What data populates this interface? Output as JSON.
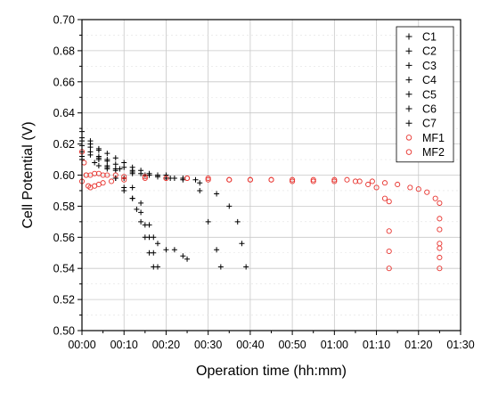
{
  "chart_data": {
    "type": "scatter",
    "title": "",
    "xlabel": "Operation time (hh:mm)",
    "ylabel": "Cell Potential (V)",
    "xlim": [
      0,
      90
    ],
    "ylim": [
      0.5,
      0.7
    ],
    "x_unit": "minutes",
    "x_ticks": [
      0,
      10,
      20,
      30,
      40,
      50,
      60,
      70,
      80,
      90
    ],
    "x_tick_labels": [
      "00:00",
      "00:10",
      "00:20",
      "00:30",
      "00:40",
      "00:50",
      "01:00",
      "01:10",
      "01:20",
      "01:30"
    ],
    "y_ticks": [
      0.5,
      0.52,
      0.54,
      0.56,
      0.58,
      0.6,
      0.62,
      0.64,
      0.66,
      0.68,
      0.7
    ],
    "y_tick_labels": [
      "0.50",
      "0.52",
      "0.54",
      "0.56",
      "0.58",
      "0.60",
      "0.62",
      "0.64",
      "0.66",
      "0.68",
      "0.70"
    ],
    "grid": true,
    "legend_position": "top-right",
    "series": [
      {
        "name": "C1",
        "marker": "plus",
        "color": "#000000",
        "x": [
          0,
          2,
          4,
          6,
          8,
          10,
          12,
          13,
          14,
          15,
          16,
          17
        ],
        "y": [
          0.624,
          0.618,
          0.612,
          0.605,
          0.598,
          0.59,
          0.585,
          0.578,
          0.57,
          0.56,
          0.55,
          0.541
        ]
      },
      {
        "name": "C2",
        "marker": "plus",
        "color": "#000000",
        "x": [
          0,
          2,
          4,
          6,
          8,
          10,
          12,
          14,
          15,
          16,
          17,
          18
        ],
        "y": [
          0.619,
          0.615,
          0.61,
          0.604,
          0.598,
          0.592,
          0.585,
          0.576,
          0.568,
          0.56,
          0.55,
          0.541
        ]
      },
      {
        "name": "C3",
        "marker": "plus",
        "color": "#000000",
        "x": [
          0,
          2,
          4,
          6,
          8,
          10,
          12,
          14,
          16,
          17,
          18,
          20,
          22,
          24,
          25
        ],
        "y": [
          0.628,
          0.622,
          0.616,
          0.61,
          0.604,
          0.598,
          0.592,
          0.582,
          0.568,
          0.56,
          0.556,
          0.552,
          0.552,
          0.548,
          0.546
        ]
      },
      {
        "name": "C4",
        "marker": "plus",
        "color": "#000000",
        "x": [
          0,
          2,
          4,
          6,
          8,
          10,
          12,
          14,
          16,
          18,
          20
        ],
        "y": [
          0.622,
          0.62,
          0.617,
          0.614,
          0.611,
          0.608,
          0.605,
          0.603,
          0.601,
          0.6,
          0.6
        ]
      },
      {
        "name": "C5",
        "marker": "plus",
        "color": "#000000",
        "x": [
          0,
          2,
          4,
          6,
          8,
          10,
          12,
          14,
          16,
          18,
          20,
          22
        ],
        "y": [
          0.615,
          0.613,
          0.611,
          0.609,
          0.607,
          0.605,
          0.603,
          0.601,
          0.6,
          0.599,
          0.598,
          0.598
        ]
      },
      {
        "name": "C6",
        "marker": "plus",
        "color": "#000000",
        "x": [
          0,
          3,
          6,
          9,
          12,
          15,
          18,
          21,
          24,
          27,
          28,
          30,
          32,
          33
        ],
        "y": [
          0.612,
          0.608,
          0.606,
          0.604,
          0.602,
          0.6,
          0.599,
          0.598,
          0.598,
          0.597,
          0.59,
          0.57,
          0.552,
          0.541
        ]
      },
      {
        "name": "C7",
        "marker": "plus",
        "color": "#000000",
        "x": [
          0,
          4,
          8,
          12,
          16,
          20,
          24,
          28,
          32,
          35,
          37,
          38,
          39
        ],
        "y": [
          0.61,
          0.606,
          0.603,
          0.601,
          0.6,
          0.598,
          0.597,
          0.595,
          0.588,
          0.58,
          0.57,
          0.556,
          0.541
        ]
      },
      {
        "name": "MF1",
        "marker": "circle",
        "color": "#e8342f",
        "x": [
          0,
          1,
          2,
          3,
          4,
          5,
          6,
          8,
          10,
          15,
          20,
          25,
          30,
          35,
          40,
          45,
          50,
          55,
          60,
          65,
          68,
          70,
          72,
          73,
          73,
          73,
          73
        ],
        "y": [
          0.596,
          0.6,
          0.6,
          0.601,
          0.601,
          0.6,
          0.6,
          0.6,
          0.599,
          0.599,
          0.598,
          0.598,
          0.597,
          0.597,
          0.597,
          0.597,
          0.596,
          0.596,
          0.596,
          0.596,
          0.594,
          0.592,
          0.585,
          0.583,
          0.564,
          0.551,
          0.54
        ]
      },
      {
        "name": "MF2",
        "marker": "circle",
        "color": "#e8342f",
        "x": [
          0,
          0.5,
          1,
          1.5,
          2,
          3,
          4,
          5,
          7,
          10,
          15,
          20,
          25,
          30,
          35,
          40,
          45,
          50,
          55,
          60,
          63,
          66,
          69,
          72,
          75,
          78,
          80,
          82,
          84,
          85,
          85,
          85,
          85,
          85,
          85,
          85
        ],
        "y": [
          0.615,
          0.608,
          0.6,
          0.593,
          0.592,
          0.593,
          0.594,
          0.595,
          0.596,
          0.597,
          0.598,
          0.598,
          0.598,
          0.598,
          0.597,
          0.597,
          0.597,
          0.597,
          0.597,
          0.597,
          0.597,
          0.596,
          0.596,
          0.595,
          0.594,
          0.592,
          0.591,
          0.589,
          0.585,
          0.582,
          0.572,
          0.565,
          0.556,
          0.553,
          0.547,
          0.54
        ]
      }
    ]
  }
}
